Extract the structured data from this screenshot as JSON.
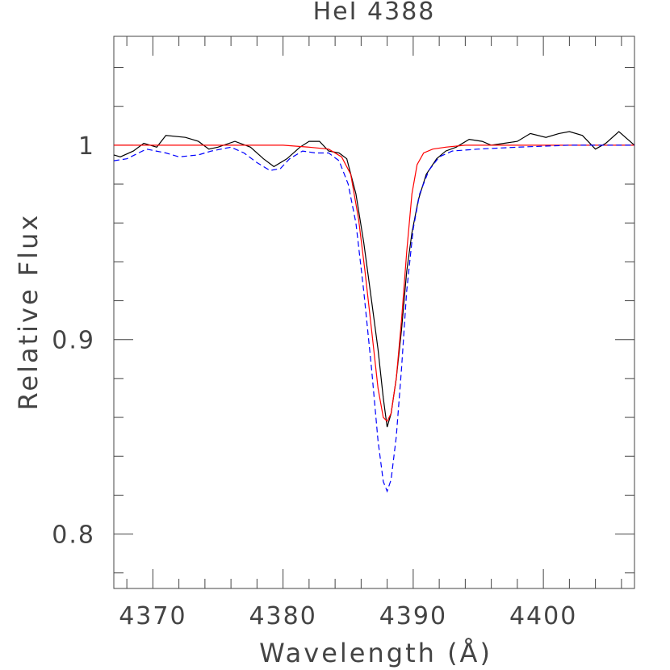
{
  "chart_data": {
    "type": "line",
    "title": "HeI 4388",
    "xlabel": "Wavelength (Å)",
    "ylabel": "Relative Flux",
    "xlim": [
      4367,
      4407
    ],
    "ylim": [
      0.772,
      1.056
    ],
    "x_ticks": [
      4370,
      4380,
      4390,
      4400
    ],
    "y_ticks": [
      0.8,
      0.9,
      1
    ],
    "x_tick_labels": [
      "4370",
      "4380",
      "4390",
      "4400"
    ],
    "y_tick_labels": [
      "0.8",
      "0.9",
      "1"
    ],
    "x_minor_step": 2,
    "y_minor_step": 0.02,
    "grid": false,
    "series": [
      {
        "color": "#000000",
        "dash": "solid",
        "x": [
          4367,
          4367.5,
          4368.5,
          4369.3,
          4370.3,
          4371,
          4372.5,
          4373.5,
          4374.3,
          4375,
          4376.3,
          4377.5,
          4378.5,
          4379.3,
          4380.3,
          4381.3,
          4382,
          4382.8,
          4383.5,
          4384.3,
          4384.9,
          4385.6,
          4386.2,
          4386.8,
          4387.3,
          4387.7,
          4388.0,
          4388.3,
          4388.7,
          4389.1,
          4389.5,
          4389.9,
          4390.4,
          4391.0,
          4391.8,
          4392.5,
          4393.3,
          4394.3,
          4395.3,
          4396.0,
          4397.0,
          4398.0,
          4399.0,
          4400.2,
          4401.2,
          4402.0,
          4403.0,
          4404.0,
          4404.8,
          4405.8,
          4407
        ],
        "values": [
          0.995,
          0.994,
          0.997,
          1.001,
          0.999,
          1.005,
          1.004,
          1.002,
          0.998,
          0.999,
          1.002,
          0.999,
          0.993,
          0.989,
          0.993,
          0.999,
          1.002,
          1.002,
          0.997,
          0.996,
          0.993,
          0.975,
          0.95,
          0.92,
          0.895,
          0.87,
          0.855,
          0.862,
          0.88,
          0.905,
          0.935,
          0.955,
          0.972,
          0.985,
          0.993,
          0.997,
          0.999,
          1.003,
          1.002,
          1.0,
          1.001,
          1.002,
          1.006,
          1.004,
          1.006,
          1.007,
          1.005,
          0.998,
          1.001,
          1.007,
          1.0
        ]
      },
      {
        "color": "#ff0000",
        "dash": "solid",
        "x": [
          4367,
          4372,
          4376,
          4380,
          4382,
          4383.5,
          4384.5,
          4385.2,
          4385.8,
          4386.3,
          4386.8,
          4387.3,
          4387.7,
          4388.0,
          4388.3,
          4388.7,
          4389.1,
          4389.5,
          4389.9,
          4390.3,
          4390.8,
          4391.5,
          4392.5,
          4394,
          4398,
          4402,
          4407
        ],
        "values": [
          1.0,
          1.0,
          1.0,
          1.0,
          0.999,
          0.998,
          0.994,
          0.985,
          0.962,
          0.935,
          0.905,
          0.875,
          0.86,
          0.858,
          0.862,
          0.88,
          0.91,
          0.945,
          0.975,
          0.99,
          0.996,
          0.998,
          0.999,
          1.0,
          1.0,
          1.0,
          1.0
        ]
      },
      {
        "color": "#0000ff",
        "dash": "dashed",
        "x": [
          4367,
          4368,
          4369.5,
          4371,
          4372,
          4373.5,
          4374.5,
          4376,
          4377,
          4378,
          4379,
          4379.8,
          4380.5,
          4381.5,
          4382.5,
          4383.5,
          4384.3,
          4385.0,
          4385.6,
          4386.2,
          4386.8,
          4387.3,
          4387.7,
          4388.0,
          4388.3,
          4388.7,
          4389.1,
          4389.5,
          4390.0,
          4390.5,
          4391.2,
          4392.0,
          4393.0,
          4395,
          4398,
          4402,
          4407
        ],
        "values": [
          0.992,
          0.993,
          0.998,
          0.996,
          0.994,
          0.995,
          0.997,
          0.999,
          0.996,
          0.991,
          0.987,
          0.988,
          0.993,
          0.997,
          0.996,
          0.996,
          0.992,
          0.98,
          0.96,
          0.925,
          0.885,
          0.848,
          0.827,
          0.822,
          0.828,
          0.85,
          0.885,
          0.925,
          0.957,
          0.975,
          0.987,
          0.994,
          0.997,
          0.998,
          0.999,
          1.0,
          1.0
        ]
      }
    ]
  }
}
